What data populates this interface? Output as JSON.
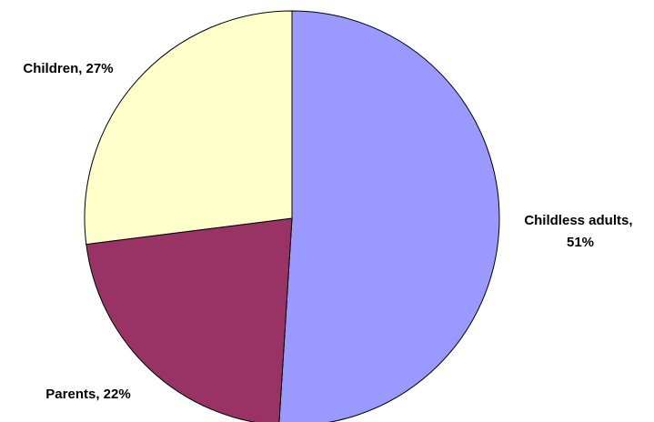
{
  "chart_data": {
    "type": "pie",
    "title": "",
    "slices": [
      {
        "label": "Childless adults",
        "value": 51,
        "display_line1": "Childless adults,",
        "display_line2": "51%",
        "color": "#9999ff"
      },
      {
        "label": "Parents",
        "value": 22,
        "display_line1": "Parents, 22%",
        "display_line2": "",
        "color": "#993366"
      },
      {
        "label": "Children",
        "value": 27,
        "display_line1": "Children, 27%",
        "display_line2": "",
        "color": "#ffffcc"
      }
    ],
    "start_angle": "12 o'clock",
    "direction": "clockwise",
    "legend": "none",
    "outline_color": "#000000"
  }
}
